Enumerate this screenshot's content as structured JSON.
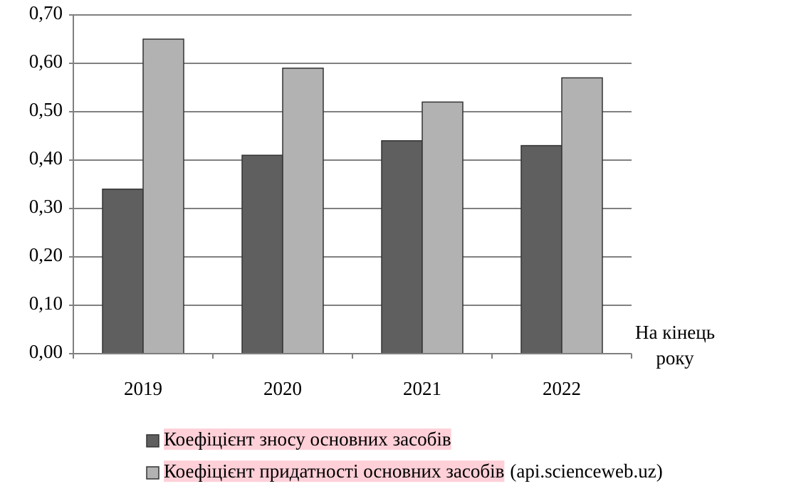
{
  "chart_data": {
    "type": "bar",
    "categories": [
      "2019",
      "2020",
      "2021",
      "2022"
    ],
    "series": [
      {
        "name": "Коефіцієнт зносу основних засобів",
        "color": "#5f5f5f",
        "values": [
          0.34,
          0.41,
          0.44,
          0.43
        ]
      },
      {
        "name": "Коефіцієнт придатності основних засобів",
        "color": "#b2b2b2",
        "values": [
          0.65,
          0.59,
          0.52,
          0.57
        ]
      }
    ],
    "x_label": "На кінець року",
    "source_note": "(api.scienceweb.uz)",
    "ylim": [
      0,
      0.7
    ],
    "yticks": [
      {
        "value": 0,
        "label": "0,00"
      },
      {
        "value": 0.1,
        "label": "0,10"
      },
      {
        "value": 0.2,
        "label": "0,20"
      },
      {
        "value": 0.3,
        "label": "0,30"
      },
      {
        "value": 0.4,
        "label": "0,40"
      },
      {
        "value": 0.5,
        "label": "0,50"
      },
      {
        "value": 0.6,
        "label": "0,60"
      },
      {
        "value": 0.7,
        "label": "0,70"
      }
    ],
    "grid": true
  }
}
